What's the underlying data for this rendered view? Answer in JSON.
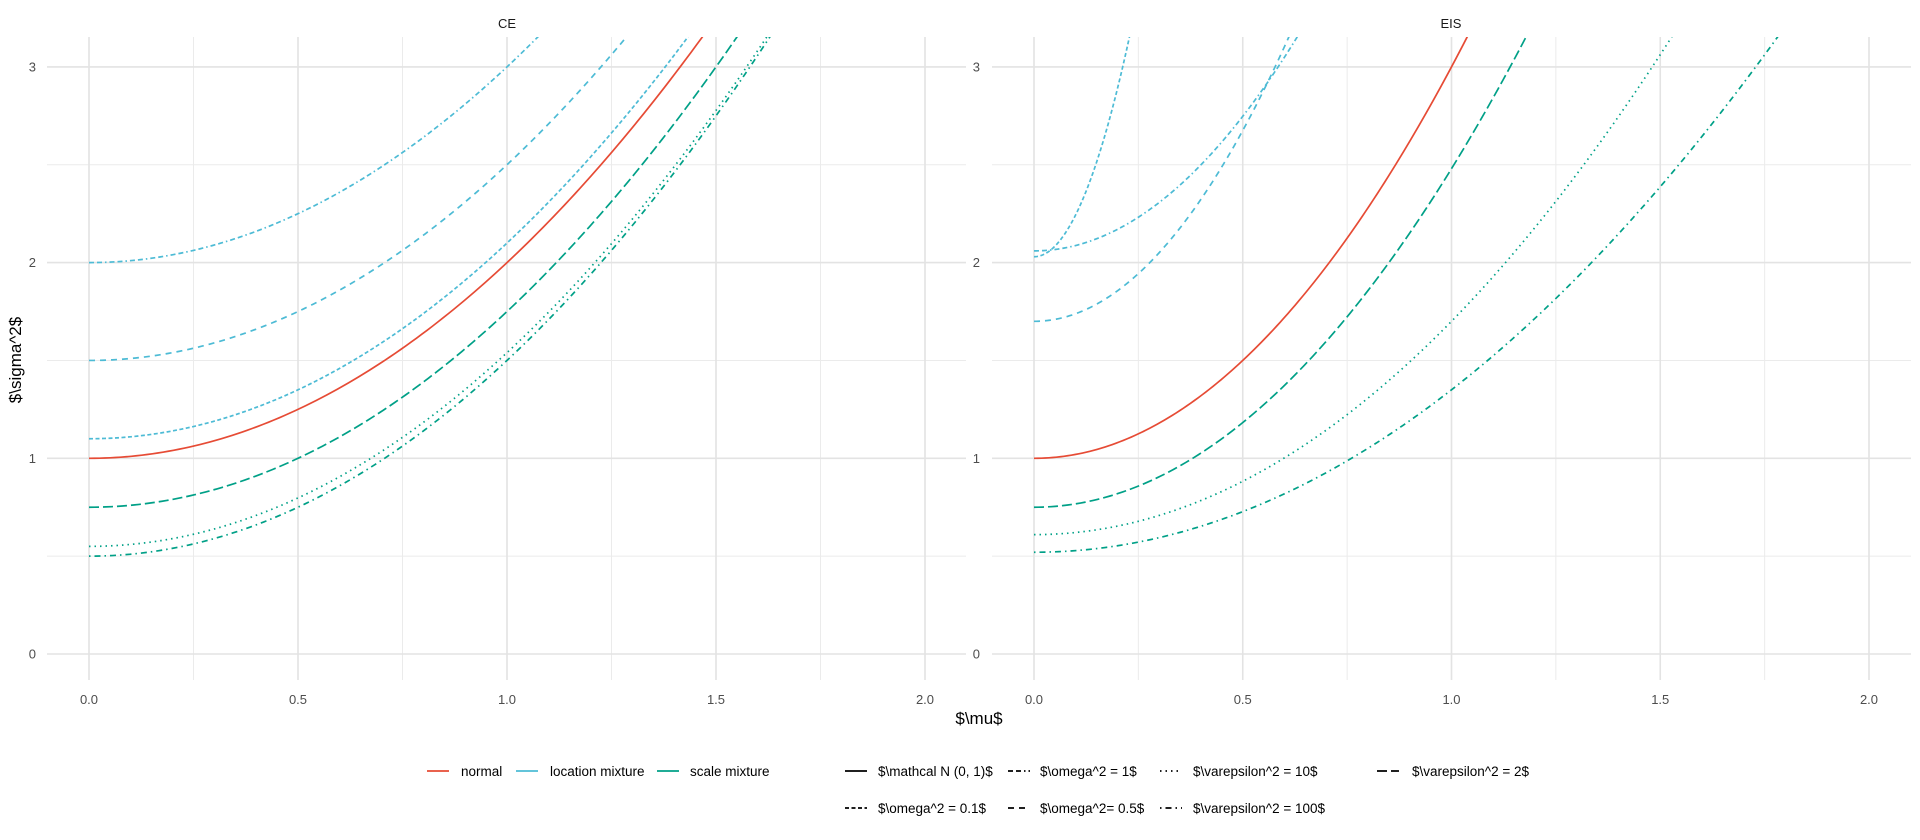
{
  "chart_data": {
    "type": "line",
    "xlabel": "$\\mu$",
    "ylabel": "$\\sigma^2$",
    "xlim": [
      -0.1,
      2.1
    ],
    "ylim": [
      -0.12,
      3.15
    ],
    "x_ticks": [
      "0.0",
      "0.5",
      "1.0",
      "1.5",
      "2.0"
    ],
    "x_tick_values": [
      0,
      0.5,
      1,
      1.5,
      2
    ],
    "y_ticks": [
      "0",
      "1",
      "2",
      "3"
    ],
    "y_tick_values": [
      0,
      1,
      2,
      3
    ],
    "grid": true,
    "curve_form": "sigma^2 = a + b * mu^2",
    "colors": {
      "normal": "#E64B35",
      "location mixture": "#4DBBD5",
      "scale mixture": "#00A087"
    },
    "legend_placement": "bottom",
    "legend_color": {
      "title": "",
      "entries": [
        {
          "label": "normal",
          "key": "normal"
        },
        {
          "label": "location mixture",
          "key": "location mixture"
        },
        {
          "label": "scale mixture",
          "key": "scale mixture"
        }
      ]
    },
    "legend_linetype": {
      "title": "",
      "entries": [
        {
          "label": "$\\mathcal N (0, 1)$",
          "dash": "solid"
        },
        {
          "label": "$\\omega^2 = 1$",
          "dash": "dashdot2"
        },
        {
          "label": "$\\varepsilon^2 = 10$",
          "dash": "dotted"
        },
        {
          "label": "$\\varepsilon^2 = 2$",
          "dash": "longdash"
        },
        {
          "label": "$\\omega^2 = 0.1$",
          "dash": "shortdash"
        },
        {
          "label": "$\\omega^2= 0.5$",
          "dash": "dashed"
        },
        {
          "label": "$\\varepsilon^2 = 100$",
          "dash": "dotdash"
        }
      ]
    },
    "panels": [
      {
        "title": "CE",
        "series": [
          {
            "name": "normal",
            "group": "normal",
            "linetype": "$\\mathcal N (0, 1)$",
            "dash": "solid",
            "a": 1.0,
            "b": 1.0
          },
          {
            "name": "location mixture, omega^2 = 1",
            "group": "location mixture",
            "linetype": "$\\omega^2 = 1$",
            "dash": "dashdot2",
            "a": 2.0,
            "b": 1.0
          },
          {
            "name": "location mixture, omega^2 = 0.5",
            "group": "location mixture",
            "linetype": "$\\omega^2= 0.5$",
            "dash": "dashed",
            "a": 1.5,
            "b": 1.0
          },
          {
            "name": "location mixture, omega^2 = 0.1",
            "group": "location mixture",
            "linetype": "$\\omega^2 = 0.1$",
            "dash": "shortdash",
            "a": 1.1,
            "b": 1.0
          },
          {
            "name": "scale mixture, varepsilon^2 = 2",
            "group": "scale mixture",
            "linetype": "$\\varepsilon^2 = 2$",
            "dash": "longdash",
            "a": 0.75,
            "b": 1.0
          },
          {
            "name": "scale mixture, varepsilon^2 = 10",
            "group": "scale mixture",
            "linetype": "$\\varepsilon^2 = 10$",
            "dash": "dotted",
            "a": 0.55,
            "b": 0.99
          },
          {
            "name": "scale mixture, varepsilon^2 = 100",
            "group": "scale mixture",
            "linetype": "$\\varepsilon^2 = 100$",
            "dash": "dotdash",
            "a": 0.5,
            "b": 1.0
          }
        ]
      },
      {
        "title": "EIS",
        "series": [
          {
            "name": "normal",
            "group": "normal",
            "linetype": "$\\mathcal N (0, 1)$",
            "dash": "solid",
            "a": 1.0,
            "b": 2.0
          },
          {
            "name": "location mixture, omega^2 = 1",
            "group": "location mixture",
            "linetype": "$\\omega^2 = 1$",
            "dash": "dashdot2",
            "a": 2.06,
            "b": 2.75
          },
          {
            "name": "location mixture, omega^2 = 0.5",
            "group": "location mixture",
            "linetype": "$\\omega^2= 0.5$",
            "dash": "dashed",
            "a": 1.7,
            "b": 3.9
          },
          {
            "name": "location mixture, omega^2 = 0.1",
            "group": "location mixture",
            "linetype": "$\\omega^2 = 0.1$",
            "dash": "shortdash",
            "a": 2.03,
            "b": 21.5
          },
          {
            "name": "scale mixture, varepsilon^2 = 2",
            "group": "scale mixture",
            "linetype": "$\\varepsilon^2 = 2$",
            "dash": "longdash",
            "a": 0.75,
            "b": 1.73
          },
          {
            "name": "scale mixture, varepsilon^2 = 10",
            "group": "scale mixture",
            "linetype": "$\\varepsilon^2 = 10$",
            "dash": "dotted",
            "a": 0.61,
            "b": 1.09
          },
          {
            "name": "scale mixture, varepsilon^2 = 100",
            "group": "scale mixture",
            "linetype": "$\\varepsilon^2 = 100$",
            "dash": "dotdash",
            "a": 0.52,
            "b": 0.83
          }
        ]
      }
    ]
  }
}
